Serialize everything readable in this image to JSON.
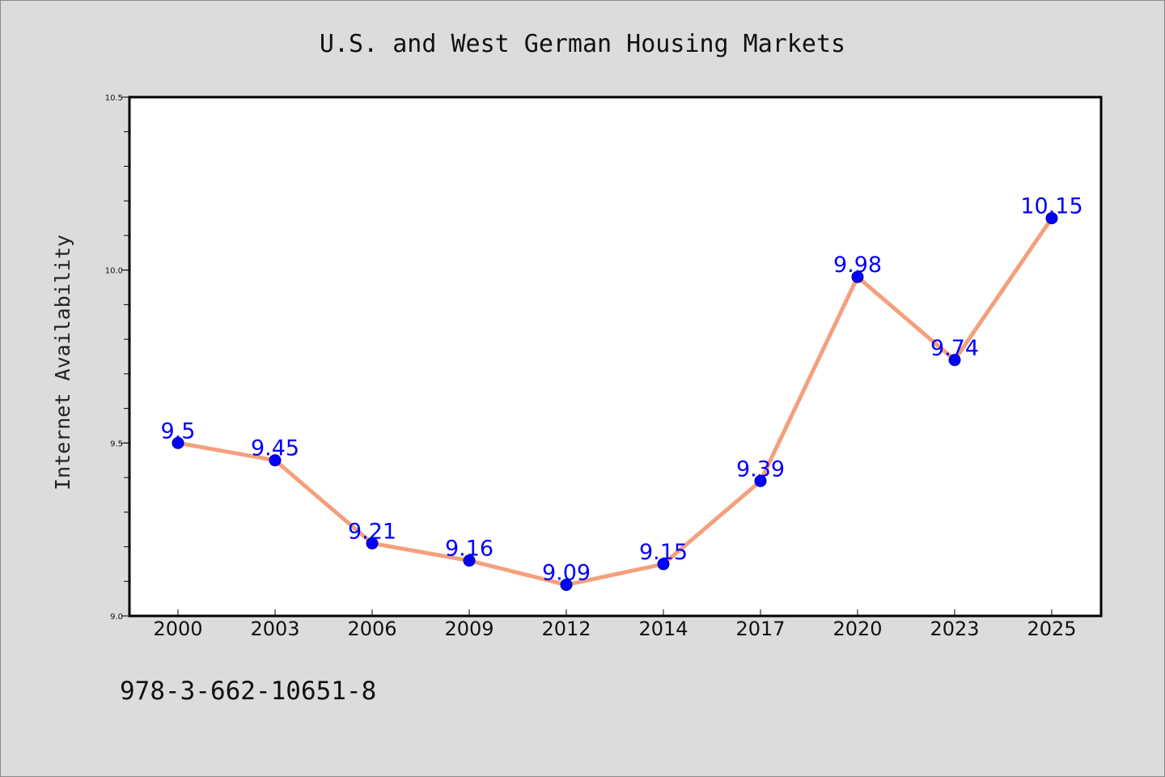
{
  "chart_data": {
    "type": "line",
    "title": "U.S. and West German Housing Markets",
    "ylabel": "Internet Availability",
    "xlabel": "",
    "categories": [
      "2000",
      "2003",
      "2006",
      "2009",
      "2012",
      "2014",
      "2017",
      "2020",
      "2023",
      "2025"
    ],
    "series": [
      {
        "values": [
          9.5,
          9.45,
          9.21,
          9.16,
          9.09,
          9.15,
          9.39,
          9.98,
          9.74,
          10.15
        ],
        "data_labels": [
          "9.5",
          "9.45",
          "9.21",
          "9.16",
          "9.09",
          "9.15",
          "9.39",
          "9.98",
          "9.74",
          "10.15"
        ]
      }
    ],
    "ylim": [
      9.0,
      10.5
    ],
    "y_major_ticks": [
      9.0,
      9.5,
      10.0,
      10.5
    ],
    "y_major_tick_labels": [
      "9.0",
      "9.5",
      "10.0",
      "10.5"
    ],
    "y_minor_step": 0.1,
    "grid": false,
    "legend": "none",
    "colors": {
      "line": "#f4a07c",
      "marker": "#0000ff",
      "marker_edge": "#00008b",
      "data_label": "#0000ff",
      "plot_background": "#ffffff",
      "figure_background": "#dcdcdc"
    }
  },
  "footer": {
    "text": "978-3-662-10651-8"
  }
}
